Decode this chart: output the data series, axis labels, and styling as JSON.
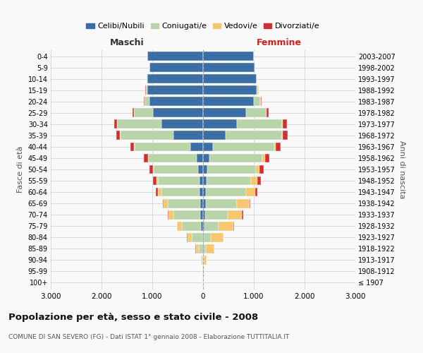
{
  "age_groups": [
    "100+",
    "95-99",
    "90-94",
    "85-89",
    "80-84",
    "75-79",
    "70-74",
    "65-69",
    "60-64",
    "55-59",
    "50-54",
    "45-49",
    "40-44",
    "35-39",
    "30-34",
    "25-29",
    "20-24",
    "15-19",
    "10-14",
    "5-9",
    "0-4"
  ],
  "birth_years": [
    "≤ 1907",
    "1908-1912",
    "1913-1917",
    "1918-1922",
    "1923-1927",
    "1928-1932",
    "1933-1937",
    "1938-1942",
    "1943-1947",
    "1948-1952",
    "1953-1957",
    "1958-1962",
    "1963-1967",
    "1968-1972",
    "1973-1977",
    "1978-1982",
    "1983-1987",
    "1988-1992",
    "1993-1997",
    "1998-2002",
    "2003-2007"
  ],
  "males": {
    "celibi": [
      2,
      2,
      5,
      10,
      20,
      40,
      60,
      60,
      65,
      70,
      100,
      130,
      250,
      580,
      820,
      980,
      1050,
      1100,
      1100,
      1050,
      1100
    ],
    "coniugati": [
      5,
      8,
      20,
      80,
      200,
      380,
      520,
      640,
      760,
      820,
      870,
      950,
      1100,
      1050,
      870,
      380,
      100,
      30,
      10,
      5,
      3
    ],
    "vedovi": [
      2,
      5,
      20,
      55,
      90,
      90,
      100,
      80,
      60,
      30,
      15,
      10,
      5,
      5,
      3,
      2,
      1,
      1,
      0,
      0,
      0
    ],
    "divorziati": [
      0,
      0,
      1,
      2,
      5,
      10,
      10,
      15,
      40,
      60,
      65,
      70,
      80,
      80,
      60,
      30,
      10,
      5,
      2,
      0,
      0
    ]
  },
  "females": {
    "nubili": [
      2,
      2,
      5,
      10,
      20,
      30,
      40,
      50,
      55,
      65,
      90,
      120,
      200,
      450,
      660,
      850,
      1000,
      1050,
      1050,
      1020,
      1000
    ],
    "coniugate": [
      3,
      5,
      15,
      50,
      130,
      280,
      440,
      620,
      790,
      880,
      950,
      1050,
      1200,
      1100,
      900,
      400,
      130,
      40,
      10,
      5,
      3
    ],
    "vedove": [
      5,
      15,
      50,
      160,
      250,
      290,
      290,
      250,
      180,
      120,
      70,
      50,
      30,
      20,
      10,
      5,
      3,
      2,
      0,
      0,
      0
    ],
    "divorziate": [
      0,
      0,
      1,
      2,
      5,
      10,
      15,
      15,
      45,
      70,
      80,
      90,
      100,
      100,
      80,
      40,
      15,
      5,
      2,
      0,
      0
    ]
  },
  "colors": {
    "celibi": "#3b6ea5",
    "coniugati": "#b8d4a8",
    "vedovi": "#f5c76e",
    "divorziati": "#d03030"
  },
  "xlim": 3000,
  "title": "Popolazione per età, sesso e stato civile - 2008",
  "subtitle": "COMUNE DI SAN SEVERO (FG) - Dati ISTAT 1° gennaio 2008 - Elaborazione TUTTITALIA.IT",
  "ylabel_left": "Fasce di età",
  "ylabel_right": "Anni di nascita",
  "xlabel_left": "Maschi",
  "xlabel_right": "Femmine",
  "bg_color": "#f9f9f9",
  "grid_color": "#cccccc"
}
